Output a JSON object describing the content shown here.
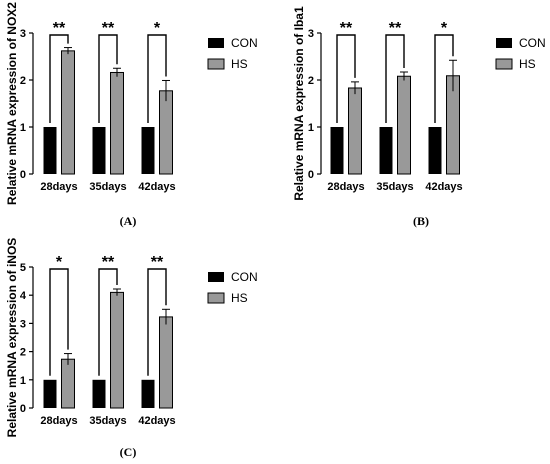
{
  "colors": {
    "CON": "#000000",
    "HS": "#999999"
  },
  "chart_data": [
    {
      "type": "bar",
      "panel": "(A)",
      "ylabel": "Relative mRNA expression of NOX2",
      "ylim": [
        0,
        3
      ],
      "yticks": [
        0,
        1,
        2,
        3
      ],
      "categories": [
        "28days",
        "35days",
        "42days"
      ],
      "series": [
        {
          "name": "CON",
          "values": [
            1,
            1,
            1
          ],
          "errors": [
            0,
            0,
            0
          ]
        },
        {
          "name": "HS",
          "values": [
            2.62,
            2.16,
            1.77
          ],
          "errors": [
            0.07,
            0.09,
            0.22
          ]
        }
      ],
      "significance": [
        "**",
        "**",
        "*"
      ],
      "legend": [
        "CON",
        "HS"
      ],
      "legend_position": "right"
    },
    {
      "type": "bar",
      "panel": "(B)",
      "ylabel": "Relative mRNA expression of Iba1",
      "ylim": [
        0,
        3
      ],
      "yticks": [
        0,
        1,
        2,
        3
      ],
      "categories": [
        "28days",
        "35days",
        "42days"
      ],
      "series": [
        {
          "name": "CON",
          "values": [
            1,
            1,
            1
          ],
          "errors": [
            0,
            0,
            0
          ]
        },
        {
          "name": "HS",
          "values": [
            1.83,
            2.08,
            2.09
          ],
          "errors": [
            0.13,
            0.09,
            0.33
          ]
        }
      ],
      "significance": [
        "**",
        "**",
        "*"
      ],
      "legend": [
        "CON",
        "HS"
      ],
      "legend_position": "right"
    },
    {
      "type": "bar",
      "panel": "(C)",
      "ylabel": "Relative mRNA expression of iNOS",
      "ylim": [
        0,
        5
      ],
      "yticks": [
        0,
        1,
        2,
        3,
        4,
        5
      ],
      "categories": [
        "28days",
        "35days",
        "42days"
      ],
      "series": [
        {
          "name": "CON",
          "values": [
            1,
            1,
            1
          ],
          "errors": [
            0,
            0,
            0
          ]
        },
        {
          "name": "HS",
          "values": [
            1.73,
            4.1,
            3.23
          ],
          "errors": [
            0.2,
            0.12,
            0.27
          ]
        }
      ],
      "significance": [
        "*",
        "**",
        "**"
      ],
      "legend": [
        "CON",
        "HS"
      ],
      "legend_position": "right"
    }
  ]
}
